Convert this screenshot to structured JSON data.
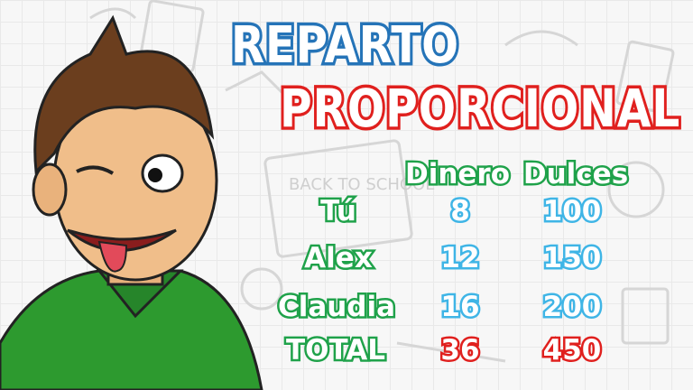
{
  "title": {
    "line1": "REPARTO",
    "line2": "PROPORCIONAL"
  },
  "table": {
    "headers": [
      "Dinero",
      "Dulces"
    ],
    "rows": [
      {
        "name": "Tú",
        "dinero": "8",
        "dulces": "100"
      },
      {
        "name": "Alex",
        "dinero": "12",
        "dulces": "150"
      },
      {
        "name": "Claudia",
        "dinero": "16",
        "dulces": "200"
      }
    ],
    "total": {
      "name": "TOTAL",
      "dinero": "36",
      "dulces": "450"
    }
  },
  "background_doodle_text": "BACK TO SCHOOL",
  "colors": {
    "title1": "#2574b8",
    "title2": "#e0201e",
    "labels": "#1fa24a",
    "values": "#3fb5e6",
    "totals": "#e0201e",
    "shirt": "#2d9a2f"
  }
}
